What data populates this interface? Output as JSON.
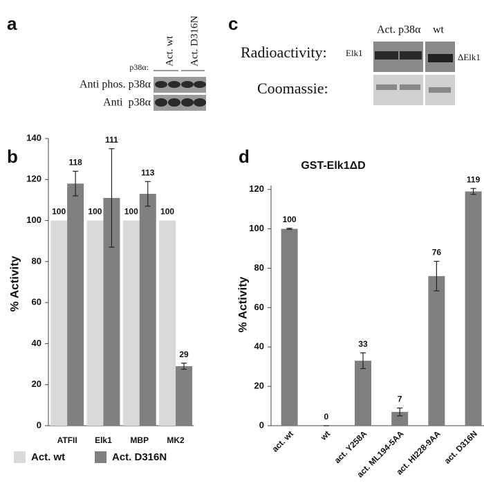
{
  "panels": [
    "a",
    "b",
    "c",
    "d"
  ],
  "blot_a": {
    "lane_label": "p38α:",
    "lanes": [
      "Act. wt",
      "Act. D316N"
    ],
    "rows": [
      "Anti phos. p38α",
      "Anti  p38α"
    ]
  },
  "blot_c": {
    "header": [
      "Act. p38α",
      "wt"
    ],
    "rows": [
      "Radioactivity:",
      "Coomassie:"
    ],
    "band_labels": [
      "Elk1",
      "ΔElk1"
    ]
  },
  "chart_data": [
    {
      "type": "bar",
      "ylabel": "% Activity",
      "categories": [
        "ATFII",
        "Elk1",
        "MBP",
        "MK2"
      ],
      "series": [
        {
          "name": "Act. wt",
          "color": "#d9d9d9",
          "values": [
            100,
            100,
            100,
            100
          ]
        },
        {
          "name": "Act. D316N",
          "color": "#808080",
          "values": [
            118,
            111,
            113,
            29
          ],
          "errors": [
            6,
            24,
            6,
            1.5
          ]
        }
      ],
      "ylim": [
        0,
        140
      ],
      "yticks": [
        0,
        20,
        40,
        60,
        80,
        100,
        120,
        140
      ],
      "legend": "bottom"
    },
    {
      "type": "bar",
      "title": "GST-Elk1ΔD",
      "ylabel": "% Activity",
      "categories": [
        "act. wt",
        "wt",
        "act. Y258A",
        "act. ML194-5AA",
        "act. HI228-9AA",
        "act. D316N"
      ],
      "series": [
        {
          "name": "GST-Elk1ΔD",
          "color": "#7f7f7f",
          "values": [
            100,
            0,
            33,
            7,
            76,
            119
          ],
          "errors": [
            0.3,
            0,
            4,
            2,
            7.5,
            1.5
          ]
        }
      ],
      "ylim": [
        0,
        122
      ],
      "yticks": [
        0,
        20,
        40,
        60,
        80,
        100,
        120
      ]
    }
  ]
}
